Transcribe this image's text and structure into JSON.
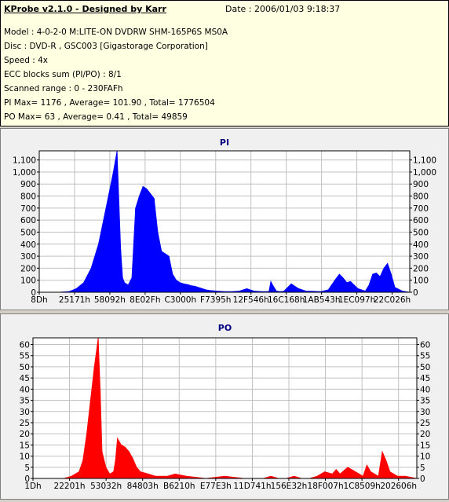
{
  "header": {
    "title": "KProbe v2.1.0 - Designed by Karr",
    "date": "Date : 2006/01/03 9:18:37",
    "model": "Model : 4-0-2-0 M:LITE-ON DVDRW SHM-165P6S MS0A",
    "disc": "Disc : DVD-R , GSC003 [Gigastorage Corporation]",
    "speed": "Speed : 4x",
    "ecc": "ECC blocks sum (PI/PO) : 8/1",
    "range": "Scanned range : 0 - 230FAFh",
    "pi_summary": "PI Max= 1176 , Average= 101.90 , Total= 1776504",
    "po_summary": "PO Max= 63 , Average= 0.41 , Total= 49859"
  },
  "colors": {
    "pi": "#0000ff",
    "po": "#ff0000",
    "title": "#000080",
    "grid": "#c0c0c0"
  },
  "chart_data": [
    {
      "type": "area",
      "title": "PI",
      "ylim": [
        0,
        1176
      ],
      "yticks": [
        0,
        100,
        200,
        300,
        400,
        500,
        600,
        700,
        800,
        900,
        1000,
        1100
      ],
      "ytick_labels": [
        "0",
        "100",
        "200",
        "300",
        "400",
        "500",
        "600",
        "700",
        "800",
        "900",
        "1,000",
        "1,100"
      ],
      "xtick_labels": [
        "8Dh",
        "25171h",
        "58092h",
        "8E02Fh",
        "C3000h",
        "F7395h",
        "12F546h",
        "16C168h",
        "1AB543h",
        "1EC097h",
        "22C026h"
      ],
      "xlim_fraction": [
        0,
        1
      ],
      "grid": true,
      "series": [
        {
          "x": [
            0,
            0.05,
            0.08,
            0.1,
            0.12,
            0.14,
            0.16,
            0.18,
            0.2,
            0.21,
            0.22,
            0.225,
            0.23,
            0.24,
            0.25,
            0.26,
            0.265,
            0.27,
            0.28,
            0.29,
            0.3,
            0.31,
            0.32,
            0.33,
            0.34,
            0.35,
            0.36,
            0.37,
            0.38,
            0.39,
            0.4,
            0.41,
            0.42,
            0.43,
            0.44,
            0.45,
            0.46,
            0.48,
            0.5,
            0.52,
            0.54,
            0.56,
            0.58,
            0.6,
            0.62,
            0.625,
            0.63,
            0.64,
            0.65,
            0.66,
            0.68,
            0.7,
            0.72,
            0.74,
            0.76,
            0.78,
            0.8,
            0.81,
            0.82,
            0.83,
            0.84,
            0.85,
            0.86,
            0.87,
            0.88,
            0.89,
            0.9,
            0.91,
            0.92,
            0.93,
            0.94,
            0.95,
            0.96,
            0.98,
            1.0
          ],
          "y": [
            0,
            0,
            5,
            30,
            80,
            200,
            400,
            700,
            1000,
            1176,
            350,
            120,
            80,
            60,
            120,
            700,
            750,
            800,
            880,
            860,
            820,
            780,
            500,
            340,
            320,
            300,
            150,
            100,
            80,
            70,
            65,
            55,
            50,
            40,
            30,
            20,
            15,
            10,
            5,
            5,
            10,
            30,
            10,
            5,
            5,
            90,
            60,
            10,
            5,
            8,
            70,
            30,
            10,
            8,
            5,
            20,
            110,
            150,
            120,
            80,
            90,
            60,
            30,
            20,
            10,
            60,
            150,
            160,
            130,
            200,
            240,
            150,
            40,
            10,
            0
          ]
        }
      ]
    },
    {
      "type": "area",
      "title": "PO",
      "ylim": [
        0,
        63
      ],
      "yticks": [
        0,
        5,
        10,
        15,
        20,
        25,
        30,
        35,
        40,
        45,
        50,
        55,
        60
      ],
      "ytick_labels": [
        "0",
        "5",
        "10",
        "15",
        "20",
        "25",
        "30",
        "35",
        "40",
        "45",
        "50",
        "55",
        "60"
      ],
      "xtick_labels": [
        "1Dh",
        "22201h",
        "53032h",
        "84803h",
        "B6210h",
        "E77E3h",
        "11D741h",
        "156E32h",
        "18F007h",
        "1C8509h",
        "202606h"
      ],
      "xlim_fraction": [
        0,
        1
      ],
      "grid": true,
      "series": [
        {
          "x": [
            0,
            0.08,
            0.1,
            0.12,
            0.13,
            0.14,
            0.15,
            0.16,
            0.17,
            0.175,
            0.18,
            0.19,
            0.2,
            0.21,
            0.215,
            0.22,
            0.23,
            0.24,
            0.25,
            0.26,
            0.27,
            0.28,
            0.3,
            0.32,
            0.35,
            0.37,
            0.4,
            0.45,
            0.5,
            0.55,
            0.6,
            0.62,
            0.64,
            0.66,
            0.68,
            0.7,
            0.72,
            0.74,
            0.76,
            0.78,
            0.79,
            0.8,
            0.82,
            0.84,
            0.86,
            0.87,
            0.88,
            0.89,
            0.9,
            0.91,
            0.92,
            0.93,
            0.95,
            0.97,
            1.0
          ],
          "y": [
            0,
            0,
            1,
            3,
            8,
            20,
            35,
            50,
            63,
            40,
            12,
            5,
            2,
            3,
            8,
            18,
            15,
            14,
            12,
            9,
            5,
            3,
            2,
            1,
            1,
            2,
            1,
            0,
            1,
            0,
            0,
            1,
            0,
            0,
            1,
            0,
            0,
            1,
            3,
            2,
            4,
            2,
            5,
            3,
            1,
            6,
            3,
            2,
            1,
            12,
            8,
            3,
            1,
            1,
            0
          ]
        }
      ]
    }
  ]
}
